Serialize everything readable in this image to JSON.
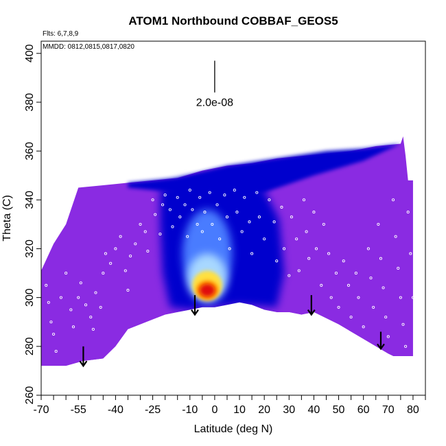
{
  "chart_data": {
    "type": "heatmap",
    "title": "ATOM1 Northbound COBBAF_GEOS5",
    "xlabel": "Latitude (deg N)",
    "ylabel": "Theta (C)",
    "xlim": [
      -70,
      85
    ],
    "ylim": [
      260,
      405
    ],
    "x_ticks": [
      -70,
      -55,
      -40,
      -25,
      -10,
      0,
      10,
      20,
      30,
      40,
      50,
      60,
      70,
      80
    ],
    "x_tick_labels": [
      "-70",
      "-55",
      "-40",
      "-25",
      "-10",
      "0",
      "10",
      "20",
      "30",
      "40",
      "50",
      "60",
      "70",
      "80"
    ],
    "y_ticks": [
      260,
      280,
      300,
      320,
      340,
      360,
      380,
      400
    ],
    "y_tick_labels": [
      "260",
      "280",
      "300",
      "320",
      "340",
      "360",
      "380",
      "400"
    ],
    "flights_note": "Flts: 6,7,8,9",
    "dates_note": "MMDD: 0812,0815,0817,0820",
    "scale_label": "2.0e-08",
    "scale_bar": {
      "x": 0,
      "y_top": 397,
      "y_bottom": 384
    },
    "grid": false,
    "colors": {
      "background_field": "#8a2be2",
      "deep_blue": "#0000cd",
      "mid_blue": "#4a7bff",
      "light_blue": "#a8d8ff",
      "yellow": "#ffe040",
      "orange": "#ff8c00",
      "red": "#e01010",
      "points": "#ffffff"
    },
    "floor_profile": [
      [
        -70,
        272
      ],
      [
        -60,
        272
      ],
      [
        -53,
        274
      ],
      [
        -45,
        275
      ],
      [
        -40,
        280
      ],
      [
        -35,
        287
      ],
      [
        -25,
        291
      ],
      [
        -20,
        293
      ],
      [
        -15,
        294
      ],
      [
        -10,
        295
      ],
      [
        -5,
        296
      ],
      [
        0,
        296
      ],
      [
        5,
        297
      ],
      [
        10,
        298
      ],
      [
        15,
        297
      ],
      [
        20,
        295
      ],
      [
        25,
        294
      ],
      [
        30,
        294
      ],
      [
        35,
        293
      ],
      [
        40,
        294
      ],
      [
        50,
        289
      ],
      [
        60,
        283
      ],
      [
        70,
        277
      ],
      [
        72,
        276
      ],
      [
        80,
        276
      ]
    ],
    "top_profile": [
      [
        -70,
        311
      ],
      [
        -65,
        322
      ],
      [
        -60,
        330
      ],
      [
        -55,
        345
      ],
      [
        -45,
        346
      ],
      [
        -35,
        347
      ],
      [
        -25,
        348
      ],
      [
        -15,
        349
      ],
      [
        -5,
        352
      ],
      [
        5,
        354
      ],
      [
        15,
        355
      ],
      [
        25,
        357
      ],
      [
        35,
        358
      ],
      [
        45,
        359
      ],
      [
        55,
        360
      ],
      [
        65,
        362
      ],
      [
        75,
        363
      ],
      [
        76,
        366
      ],
      [
        77,
        358
      ],
      [
        78,
        348
      ],
      [
        80,
        348
      ]
    ],
    "arrows": [
      {
        "x": -53,
        "y_top": 280,
        "y_bottom": 272
      },
      {
        "x": -8,
        "y_top": 301,
        "y_bottom": 293
      },
      {
        "x": 39,
        "y_top": 301,
        "y_bottom": 293
      },
      {
        "x": 67,
        "y_top": 286,
        "y_bottom": 279
      }
    ],
    "hotspot": {
      "center": [
        -3,
        303
      ],
      "levels": [
        {
          "color": "mid_blue",
          "rx": 10,
          "ry": 18,
          "cy": 318
        },
        {
          "color": "light_blue",
          "rx": 8,
          "ry": 10,
          "cy": 308
        },
        {
          "color": "yellow",
          "rx": 6,
          "ry": 6,
          "cy": 305
        },
        {
          "color": "orange",
          "rx": 4.5,
          "ry": 4,
          "cy": 303
        },
        {
          "color": "red",
          "rx": 3,
          "ry": 2.5,
          "cy": 303
        }
      ]
    },
    "sample_points": [
      [
        -68,
        305
      ],
      [
        -67,
        298
      ],
      [
        -66,
        290
      ],
      [
        -65,
        285
      ],
      [
        -64,
        278
      ],
      [
        -62,
        300
      ],
      [
        -60,
        310
      ],
      [
        -58,
        295
      ],
      [
        -57,
        288
      ],
      [
        -55,
        300
      ],
      [
        -54,
        306
      ],
      [
        -52,
        297
      ],
      [
        -50,
        292
      ],
      [
        -49,
        287
      ],
      [
        -48,
        302
      ],
      [
        -46,
        296
      ],
      [
        -45,
        310
      ],
      [
        -44,
        318
      ],
      [
        -42,
        314
      ],
      [
        -40,
        320
      ],
      [
        -38,
        325
      ],
      [
        -36,
        311
      ],
      [
        -35,
        303
      ],
      [
        -34,
        317
      ],
      [
        -32,
        322
      ],
      [
        -30,
        330
      ],
      [
        -28,
        327
      ],
      [
        -27,
        319
      ],
      [
        -25,
        340
      ],
      [
        -24,
        334
      ],
      [
        -22,
        326
      ],
      [
        -21,
        338
      ],
      [
        -20,
        342
      ],
      [
        -18,
        336
      ],
      [
        -17,
        329
      ],
      [
        -15,
        341
      ],
      [
        -14,
        333
      ],
      [
        -12,
        338
      ],
      [
        -11,
        325
      ],
      [
        -10,
        344
      ],
      [
        -9,
        336
      ],
      [
        -7,
        330
      ],
      [
        -6,
        341
      ],
      [
        -5,
        327
      ],
      [
        -4,
        335
      ],
      [
        -2,
        343
      ],
      [
        -1,
        330
      ],
      [
        1,
        338
      ],
      [
        2,
        324
      ],
      [
        4,
        342
      ],
      [
        5,
        333
      ],
      [
        6,
        320
      ],
      [
        8,
        344
      ],
      [
        9,
        335
      ],
      [
        11,
        327
      ],
      [
        12,
        341
      ],
      [
        14,
        331
      ],
      [
        15,
        318
      ],
      [
        17,
        343
      ],
      [
        18,
        333
      ],
      [
        20,
        324
      ],
      [
        22,
        340
      ],
      [
        24,
        331
      ],
      [
        25,
        315
      ],
      [
        27,
        337
      ],
      [
        28,
        320
      ],
      [
        30,
        309
      ],
      [
        31,
        333
      ],
      [
        33,
        324
      ],
      [
        34,
        311
      ],
      [
        36,
        340
      ],
      [
        37,
        327
      ],
      [
        38,
        316
      ],
      [
        40,
        335
      ],
      [
        41,
        320
      ],
      [
        43,
        305
      ],
      [
        44,
        330
      ],
      [
        46,
        318
      ],
      [
        47,
        300
      ],
      [
        49,
        310
      ],
      [
        50,
        296
      ],
      [
        52,
        315
      ],
      [
        54,
        305
      ],
      [
        55,
        292
      ],
      [
        57,
        310
      ],
      [
        58,
        300
      ],
      [
        60,
        288
      ],
      [
        62,
        320
      ],
      [
        63,
        308
      ],
      [
        64,
        296
      ],
      [
        66,
        330
      ],
      [
        67,
        316
      ],
      [
        68,
        304
      ],
      [
        69,
        292
      ],
      [
        70,
        284
      ],
      [
        72,
        340
      ],
      [
        73,
        325
      ],
      [
        74,
        312
      ],
      [
        75,
        300
      ],
      [
        76,
        289
      ],
      [
        77,
        280
      ],
      [
        78,
        335
      ],
      [
        79,
        318
      ],
      [
        80,
        300
      ]
    ]
  }
}
